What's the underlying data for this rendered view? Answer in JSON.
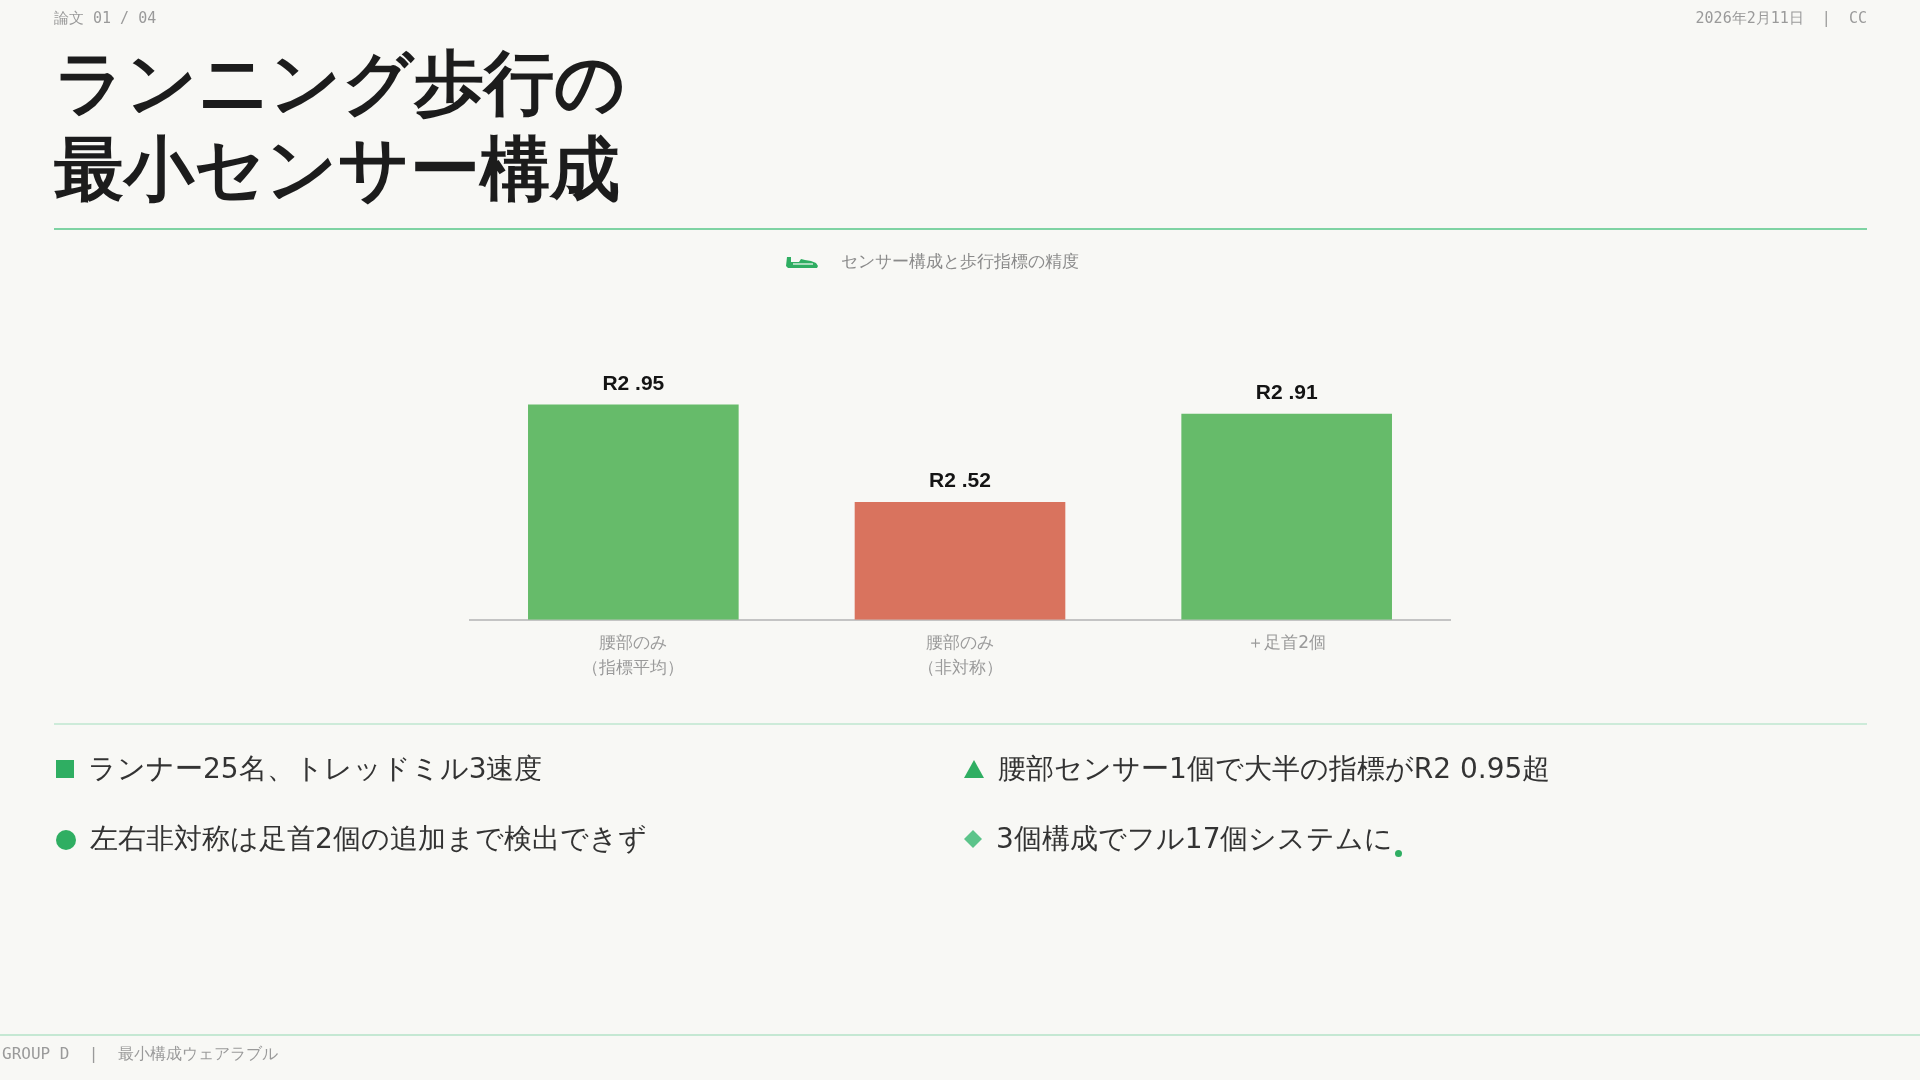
{
  "chart_data": {
    "type": "bar",
    "title": "ランニング歩行の最小センサー構成",
    "subtitle": "センサー構成と歩行指標の精度",
    "categories": [
      "腰部のみ（指標平均）",
      "腰部のみ（非対称）",
      "＋足首2個"
    ],
    "values": [
      0.95,
      0.52,
      0.91
    ],
    "colors": [
      "#66bb6a",
      "#d9735e",
      "#66bb6a"
    ],
    "value_labels": [
      "R2 .95",
      "R2 .52",
      "R2 .91"
    ],
    "annotations": [
      "論文 01 / 04",
      "2026年2月11日  |  CC",
      "ランナー25名、トレッドミル3速度",
      "腰部センサー1個で大半の指標がR2 0.95超",
      "左右非対称は足首2個の追加まで検出できず",
      "3個構成でフル17個システムに",
      "GROUP D  |  最小構成ウェアラブル"
    ]
  }
}
